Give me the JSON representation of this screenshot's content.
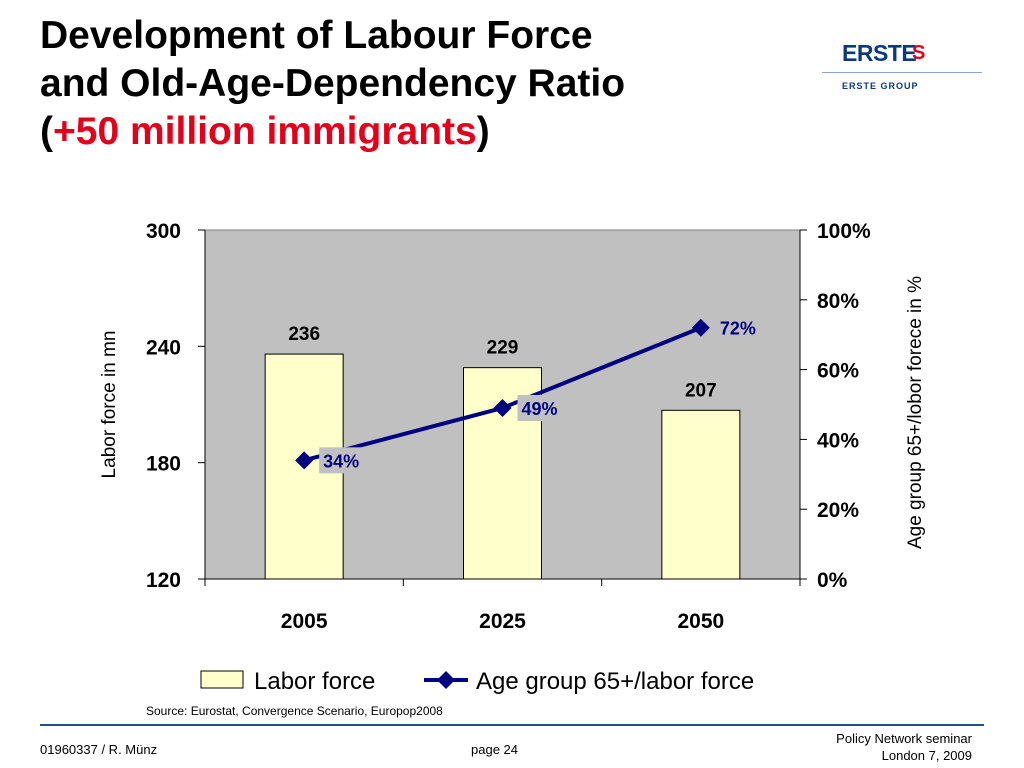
{
  "title": {
    "line1": "Development of Labour Force",
    "line2": "and Old-Age-Dependency Ratio",
    "line3_open": "(",
    "line3_highlight": "+50 million immigrants",
    "line3_close": ")"
  },
  "logo": {
    "brand": "ERSTE",
    "symbol": "S",
    "group": "ERSTE GROUP"
  },
  "colors": {
    "title_highlight": "#e2001a",
    "plot_bg": "#c0c0c0",
    "bar_fill": "#ffffcc",
    "line": "#000080",
    "label_bg": "#c0c0c0"
  },
  "chart_data": {
    "type": "bar",
    "categories": [
      "2005",
      "2025",
      "2050"
    ],
    "series": [
      {
        "name": "Labor force",
        "type": "bar",
        "axis": "left",
        "values": [
          236,
          229,
          207
        ],
        "data_labels": [
          "236",
          "229",
          "207"
        ]
      },
      {
        "name": "Age group 65+/labor force",
        "type": "line",
        "axis": "right",
        "values": [
          34,
          49,
          72
        ],
        "data_labels": [
          "34%",
          "49%",
          "72%"
        ]
      }
    ],
    "ylabel": "Labor force in mn",
    "ylim": [
      120,
      300
    ],
    "yticks": [
      "300",
      "240",
      "180",
      "120"
    ],
    "y2label": "Age group 65+/lobor forece in %",
    "y2lim": [
      0,
      100
    ],
    "y2ticks": [
      "100%",
      "80%",
      "60%",
      "40%",
      "20%",
      "0%"
    ],
    "legend": "bottom",
    "grid": false
  },
  "source": "Source: Eurostat, Convergence Scenario, Europop2008",
  "footer": {
    "left": "01960337 / R. Münz",
    "center": "page 24",
    "right_line1": "Policy Network seminar",
    "right_line2": "London 7, 2009"
  }
}
